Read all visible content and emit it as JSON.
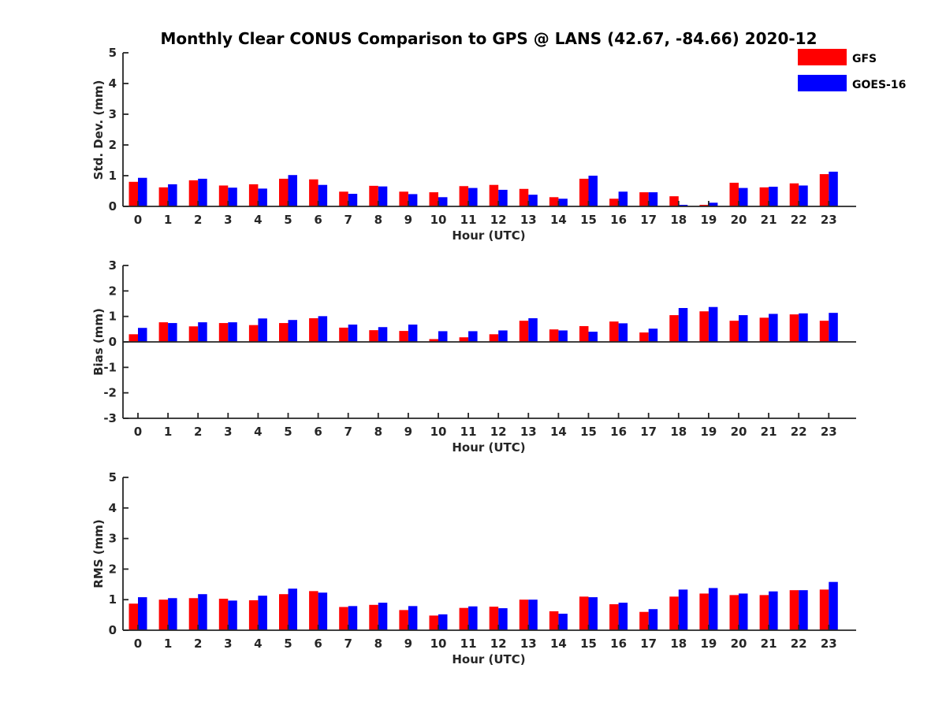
{
  "title": "Monthly Clear CONUS Comparison to GPS @ LANS (42.67, -84.66) 2020-12",
  "legend": [
    {
      "name": "GFS",
      "color": "#ff0000"
    },
    {
      "name": "GOES-16",
      "color": "#0000ff"
    }
  ],
  "chart_data": [
    {
      "type": "bar",
      "title": "Monthly Clear CONUS Comparison to GPS @ LANS (42.67, -84.66) 2020-12",
      "xlabel": "Hour (UTC)",
      "ylabel": "Std. Dev. (mm)",
      "ylim": [
        0,
        5
      ],
      "yticks": [
        "0",
        "1",
        "2",
        "3",
        "4",
        "5"
      ],
      "categories": [
        "0",
        "1",
        "2",
        "3",
        "4",
        "5",
        "6",
        "7",
        "8",
        "9",
        "10",
        "11",
        "12",
        "13",
        "14",
        "15",
        "16",
        "17",
        "18",
        "19",
        "20",
        "21",
        "22",
        "23"
      ],
      "series": [
        {
          "name": "GFS",
          "color": "#ff0000",
          "values": [
            0.8,
            0.62,
            0.85,
            0.68,
            0.72,
            0.9,
            0.88,
            0.48,
            0.67,
            0.48,
            0.46,
            0.66,
            0.7,
            0.57,
            0.3,
            0.9,
            0.25,
            0.46,
            0.33,
            0.05,
            0.77,
            0.62,
            0.75,
            1.05
          ]
        },
        {
          "name": "GOES-16",
          "color": "#0000ff",
          "values": [
            0.93,
            0.72,
            0.9,
            0.61,
            0.58,
            1.02,
            0.7,
            0.41,
            0.65,
            0.4,
            0.3,
            0.6,
            0.54,
            0.38,
            0.25,
            1.0,
            0.48,
            0.46,
            0.05,
            0.12,
            0.6,
            0.64,
            0.68,
            1.13
          ]
        }
      ]
    },
    {
      "type": "bar",
      "xlabel": "Hour (UTC)",
      "ylabel": "Bias (mm)",
      "ylim": [
        -3,
        3
      ],
      "yticks": [
        "-3",
        "-2",
        "-1",
        "0",
        "1",
        "2",
        "3"
      ],
      "categories": [
        "0",
        "1",
        "2",
        "3",
        "4",
        "5",
        "6",
        "7",
        "8",
        "9",
        "10",
        "11",
        "12",
        "13",
        "14",
        "15",
        "16",
        "17",
        "18",
        "19",
        "20",
        "21",
        "22",
        "23"
      ],
      "series": [
        {
          "name": "GFS",
          "color": "#ff0000",
          "values": [
            0.3,
            0.77,
            0.61,
            0.74,
            0.66,
            0.74,
            0.93,
            0.56,
            0.46,
            0.43,
            0.11,
            0.18,
            0.3,
            0.83,
            0.49,
            0.62,
            0.8,
            0.37,
            1.05,
            1.2,
            0.83,
            0.95,
            1.08,
            0.83
          ]
        },
        {
          "name": "GOES-16",
          "color": "#0000ff",
          "values": [
            0.55,
            0.74,
            0.77,
            0.77,
            0.92,
            0.86,
            1.01,
            0.68,
            0.58,
            0.68,
            0.42,
            0.42,
            0.45,
            0.93,
            0.45,
            0.4,
            0.73,
            0.52,
            1.33,
            1.37,
            1.05,
            1.1,
            1.12,
            1.14
          ]
        }
      ]
    },
    {
      "type": "bar",
      "xlabel": "Hour (UTC)",
      "ylabel": "RMS (mm)",
      "ylim": [
        0,
        5
      ],
      "yticks": [
        "0",
        "1",
        "2",
        "3",
        "4",
        "5"
      ],
      "categories": [
        "0",
        "1",
        "2",
        "3",
        "4",
        "5",
        "6",
        "7",
        "8",
        "9",
        "10",
        "11",
        "12",
        "13",
        "14",
        "15",
        "16",
        "17",
        "18",
        "19",
        "20",
        "21",
        "22",
        "23"
      ],
      "series": [
        {
          "name": "GFS",
          "color": "#ff0000",
          "values": [
            0.87,
            1.0,
            1.05,
            1.03,
            0.98,
            1.18,
            1.28,
            0.76,
            0.83,
            0.66,
            0.48,
            0.73,
            0.77,
            1.0,
            0.62,
            1.1,
            0.85,
            0.6,
            1.1,
            1.2,
            1.15,
            1.15,
            1.31,
            1.33
          ]
        },
        {
          "name": "GOES-16",
          "color": "#0000ff",
          "values": [
            1.08,
            1.05,
            1.18,
            0.97,
            1.13,
            1.36,
            1.23,
            0.79,
            0.9,
            0.79,
            0.52,
            0.78,
            0.72,
            1.0,
            0.54,
            1.08,
            0.9,
            0.69,
            1.33,
            1.38,
            1.2,
            1.27,
            1.31,
            1.58
          ]
        }
      ]
    }
  ]
}
